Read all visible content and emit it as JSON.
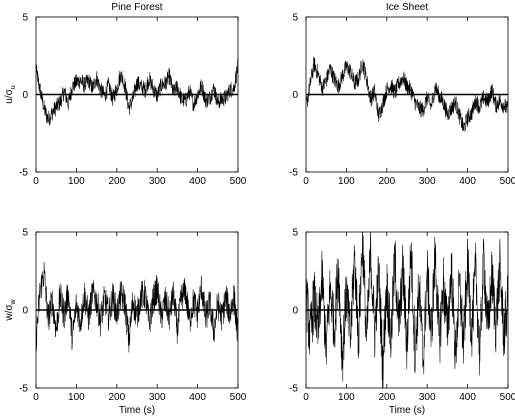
{
  "chart_data": [
    {
      "type": "line",
      "title": "Pine Forest",
      "xlabel": "",
      "ylabel": "u/σ",
      "ylabel_sub": "u",
      "xlim": [
        0,
        500
      ],
      "ylim": [
        -5,
        5
      ],
      "xticks": [
        0,
        100,
        200,
        300,
        400,
        500
      ],
      "yticks": [
        -5,
        0,
        5
      ],
      "series": [
        {
          "x": [
            0,
            10,
            20,
            30,
            40,
            50,
            60,
            70,
            80,
            90,
            100,
            110,
            120,
            130,
            140,
            150,
            160,
            170,
            180,
            190,
            200,
            210,
            220,
            230,
            240,
            250,
            260,
            270,
            280,
            290,
            300,
            310,
            320,
            330,
            340,
            350,
            360,
            370,
            380,
            390,
            400,
            410,
            420,
            430,
            440,
            450,
            460,
            470,
            480,
            490,
            500
          ],
          "values": [
            1.6,
            0.3,
            -0.9,
            -1.6,
            -1.2,
            -0.8,
            -0.5,
            0.2,
            -0.6,
            0.5,
            0.8,
            0.9,
            0.6,
            0.9,
            0.4,
            1.1,
            0.3,
            -0.1,
            0.6,
            -0.3,
            0.4,
            1.3,
            0.6,
            -0.9,
            -0.3,
            0.8,
            0.5,
            0.3,
            1.0,
            0.4,
            -0.1,
            0.6,
            0.7,
            1.2,
            0.1,
            0.5,
            -0.3,
            -0.4,
            0.2,
            -0.6,
            0.0,
            0.6,
            -0.4,
            -0.2,
            0.4,
            -0.5,
            -0.3,
            -0.2,
            0.3,
            0.4,
            1.9
          ]
        }
      ]
    },
    {
      "type": "line",
      "title": "Ice Sheet",
      "xlabel": "",
      "ylabel": "",
      "xlim": [
        0,
        500
      ],
      "ylim": [
        -5,
        5
      ],
      "xticks": [
        0,
        100,
        200,
        300,
        400,
        500
      ],
      "yticks": [
        -5,
        0,
        5
      ],
      "series": [
        {
          "x": [
            0,
            10,
            20,
            30,
            40,
            50,
            60,
            70,
            80,
            90,
            100,
            110,
            120,
            130,
            140,
            150,
            160,
            170,
            180,
            190,
            200,
            210,
            220,
            230,
            240,
            250,
            260,
            270,
            280,
            290,
            300,
            310,
            320,
            330,
            340,
            350,
            360,
            370,
            380,
            390,
            400,
            410,
            420,
            430,
            440,
            450,
            460,
            470,
            480,
            490,
            500
          ],
          "values": [
            -0.8,
            0.6,
            2.0,
            1.3,
            0.4,
            0.9,
            1.7,
            1.0,
            0.5,
            1.2,
            1.8,
            1.5,
            0.7,
            1.0,
            2.1,
            1.0,
            -0.3,
            0.2,
            -1.4,
            -0.6,
            0.3,
            0.6,
            0.1,
            0.7,
            1.1,
            0.5,
            0.3,
            -0.5,
            -0.9,
            -1.0,
            -0.2,
            -0.8,
            0.5,
            -0.1,
            -0.5,
            -1.3,
            -0.9,
            -0.5,
            -1.4,
            -2.2,
            -1.5,
            -1.2,
            -0.4,
            -0.8,
            -0.2,
            -0.5,
            0.3,
            -0.7,
            -0.4,
            -0.7,
            -1.0
          ]
        }
      ]
    },
    {
      "type": "line",
      "title": "",
      "xlabel": "Time (s)",
      "ylabel": "w/σ",
      "ylabel_sub": "w",
      "xlim": [
        0,
        500
      ],
      "ylim": [
        -5,
        5
      ],
      "xticks": [
        0,
        100,
        200,
        300,
        400,
        500
      ],
      "yticks": [
        -5,
        0,
        5
      ],
      "series": [
        {
          "x": [
            0,
            10,
            20,
            30,
            40,
            50,
            60,
            70,
            80,
            90,
            100,
            110,
            120,
            130,
            140,
            150,
            160,
            170,
            180,
            190,
            200,
            210,
            220,
            230,
            240,
            250,
            260,
            270,
            280,
            290,
            300,
            310,
            320,
            330,
            340,
            350,
            360,
            370,
            380,
            390,
            400,
            410,
            420,
            430,
            440,
            450,
            460,
            470,
            480,
            490,
            500
          ],
          "values": [
            -2.0,
            1.2,
            2.4,
            -0.6,
            0.6,
            -1.3,
            0.9,
            -0.3,
            1.1,
            -1.9,
            0.4,
            -0.8,
            1.0,
            -0.5,
            1.1,
            0.6,
            -0.7,
            0.8,
            -0.4,
            0.9,
            -0.3,
            1.0,
            0.5,
            -2.0,
            0.6,
            -0.4,
            0.9,
            1.0,
            -0.9,
            0.6,
            1.4,
            -0.5,
            0.6,
            -0.4,
            1.0,
            -1.3,
            0.8,
            1.2,
            -0.7,
            0.6,
            -0.2,
            1.5,
            -0.6,
            0.5,
            -1.4,
            0.4,
            -0.5,
            0.8,
            -0.3,
            0.9,
            -1.8
          ]
        }
      ]
    },
    {
      "type": "line",
      "title": "",
      "xlabel": "Time (s)",
      "ylabel": "",
      "xlim": [
        0,
        500
      ],
      "ylim": [
        -5,
        5
      ],
      "xticks": [
        0,
        100,
        200,
        300,
        400,
        500
      ],
      "yticks": [
        -5,
        0,
        5
      ],
      "series": [
        {
          "x": [
            0,
            10,
            20,
            30,
            40,
            50,
            60,
            70,
            80,
            90,
            100,
            110,
            120,
            130,
            140,
            150,
            160,
            170,
            180,
            190,
            200,
            210,
            220,
            230,
            240,
            250,
            260,
            270,
            280,
            290,
            300,
            310,
            320,
            330,
            340,
            350,
            360,
            370,
            380,
            390,
            400,
            410,
            420,
            430,
            440,
            450,
            460,
            470,
            480,
            490,
            500
          ],
          "values": [
            1.2,
            -1.8,
            0.8,
            -1.5,
            2.1,
            -2.6,
            1.5,
            -1.2,
            2.8,
            -3.2,
            1.3,
            -2.0,
            3.4,
            -1.8,
            4.7,
            -2.2,
            3.8,
            -1.5,
            2.4,
            -3.6,
            1.6,
            -2.0,
            3.2,
            -1.1,
            2.6,
            -2.4,
            3.9,
            -2.8,
            1.5,
            -3.3,
            2.4,
            -1.6,
            3.6,
            -2.2,
            1.8,
            -1.4,
            2.7,
            -3.0,
            1.6,
            -2.2,
            3.0,
            -1.4,
            2.5,
            -2.9,
            3.4,
            -1.5,
            2.2,
            -1.0,
            2.7,
            -1.6,
            0.8
          ]
        }
      ]
    }
  ]
}
